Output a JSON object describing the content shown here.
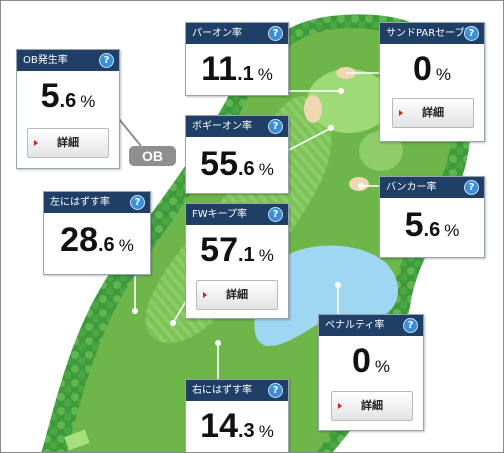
{
  "help_glyph": "?",
  "ob_label": "OB",
  "icons": {
    "help": "help-circle-icon",
    "detail_arrow": "red-triangle-arrow-icon"
  },
  "colors": {
    "header": "#1f3f66",
    "help": "#3b8fd6",
    "green": "#6fb64a",
    "water": "#9fd6f2",
    "sand": "#efd8b0"
  },
  "stats": {
    "ob": {
      "label": "OB発生率",
      "int": "5",
      "dec": ".6",
      "unit": "%",
      "detail": "詳細"
    },
    "par_on": {
      "label": "パーオン率",
      "int": "11",
      "dec": ".1",
      "unit": "%"
    },
    "sand_par_save": {
      "label": "サンドPARセーブ率",
      "int": "0",
      "dec": "",
      "unit": "%",
      "detail": "詳細"
    },
    "bogey_on": {
      "label": "ボギーオン率",
      "int": "55",
      "dec": ".6",
      "unit": "%"
    },
    "bunker": {
      "label": "バンカー率",
      "int": "5",
      "dec": ".6",
      "unit": "%"
    },
    "left_miss": {
      "label": "左にはずす率",
      "int": "28",
      "dec": ".6",
      "unit": "%"
    },
    "fw_keep": {
      "label": "FWキープ率",
      "int": "57",
      "dec": ".1",
      "unit": "%",
      "detail": "詳細"
    },
    "penalty": {
      "label": "ペナルティ率",
      "int": "0",
      "dec": "",
      "unit": "%",
      "detail": "詳細"
    },
    "right_miss": {
      "label": "右にはずす率",
      "int": "14",
      "dec": ".3",
      "unit": "%"
    }
  }
}
